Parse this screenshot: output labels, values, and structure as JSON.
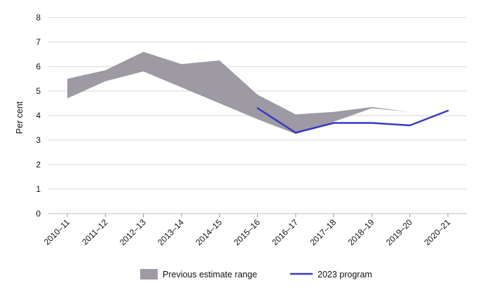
{
  "chart_data": {
    "type": "line",
    "ylabel": "Per cent",
    "ylim": [
      0,
      8
    ],
    "yticks": [
      "0",
      "1",
      "2",
      "3",
      "4",
      "5",
      "6",
      "7",
      "8"
    ],
    "categories": [
      "2010–11",
      "2011–12",
      "2012–13",
      "2013–14",
      "2014–15",
      "2015–16",
      "2016–17",
      "2017–18",
      "2018–19",
      "2019–20",
      "2020–21"
    ],
    "series": [
      {
        "name": "Previous estimate range",
        "kind": "range",
        "color": "#9e9aa3",
        "upper": [
          5.5,
          5.85,
          6.6,
          6.1,
          6.25,
          4.85,
          4.05,
          4.15,
          4.35,
          4.15,
          null
        ],
        "lower": [
          4.7,
          5.4,
          5.8,
          5.15,
          4.5,
          3.85,
          3.25,
          3.75,
          4.3,
          4.15,
          null
        ]
      },
      {
        "name": "2023 program",
        "kind": "line",
        "color": "#3838c9",
        "values": [
          null,
          null,
          null,
          null,
          null,
          4.3,
          3.3,
          3.7,
          3.7,
          3.6,
          4.2
        ]
      }
    ],
    "grid": true,
    "legend_position": "bottom"
  }
}
